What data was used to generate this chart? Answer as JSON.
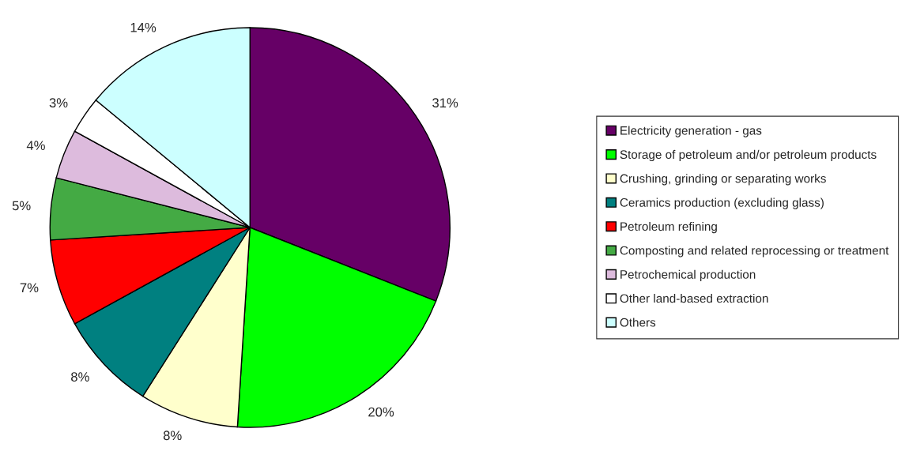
{
  "chart_data": {
    "type": "pie",
    "categories": [
      "Electricity generation - gas",
      "Storage of petroleum and/or petroleum products",
      "Crushing, grinding or separating works",
      "Ceramics production (excluding glass)",
      "Petroleum refining",
      "Composting and related reprocessing or treatment",
      "Petrochemical production",
      "Other land-based extraction",
      "Others"
    ],
    "values": [
      31,
      20,
      8,
      8,
      7,
      5,
      4,
      3,
      14
    ],
    "colors": [
      "#660066",
      "#00ff00",
      "#ffffcc",
      "#008080",
      "#ff0000",
      "#44aa44",
      "#ddbbdd",
      "#ffffff",
      "#ccffff"
    ],
    "value_labels": [
      "31%",
      "20%",
      "8%",
      "8%",
      "7%",
      "5%",
      "4%",
      "3%",
      "14%"
    ],
    "legend": "right"
  }
}
